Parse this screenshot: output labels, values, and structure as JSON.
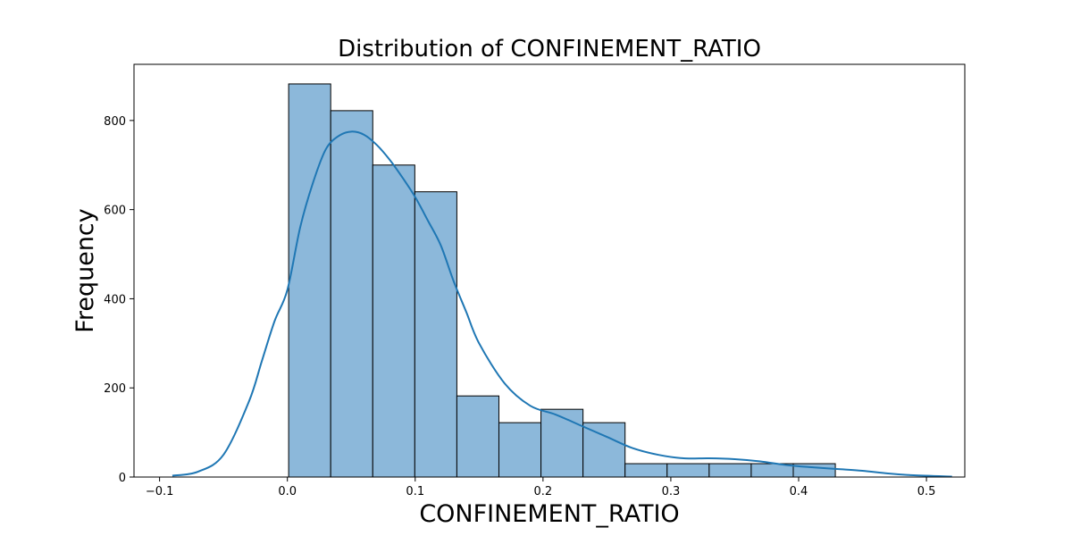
{
  "chart_data": {
    "type": "histogram",
    "title": "Distribution of CONFINEMENT_RATIO",
    "xlabel": "CONFINEMENT_RATIO",
    "ylabel": "Frequency",
    "xlim": [
      -0.12,
      0.53
    ],
    "ylim": [
      0,
      926
    ],
    "xticks": [
      -0.1,
      0.0,
      0.1,
      0.2,
      0.3,
      0.4,
      0.5
    ],
    "xtick_labels": [
      "−0.1",
      "0.0",
      "0.1",
      "0.2",
      "0.3",
      "0.4",
      "0.5"
    ],
    "yticks": [
      0,
      200,
      400,
      600,
      800
    ],
    "ytick_labels": [
      "0",
      "200",
      "400",
      "600",
      "800"
    ],
    "grid": false,
    "bar_color": "#8cb8da",
    "line_color": "#1f77b4",
    "bins": [
      {
        "x0": 0.001,
        "x1": 0.0339,
        "count": 882
      },
      {
        "x0": 0.0339,
        "x1": 0.0668,
        "count": 822
      },
      {
        "x0": 0.0668,
        "x1": 0.0997,
        "count": 700
      },
      {
        "x0": 0.0997,
        "x1": 0.1326,
        "count": 640
      },
      {
        "x0": 0.1326,
        "x1": 0.1655,
        "count": 182
      },
      {
        "x0": 0.1655,
        "x1": 0.1984,
        "count": 122
      },
      {
        "x0": 0.1984,
        "x1": 0.2313,
        "count": 152
      },
      {
        "x0": 0.2313,
        "x1": 0.2642,
        "count": 122
      },
      {
        "x0": 0.2642,
        "x1": 0.2971,
        "count": 30
      },
      {
        "x0": 0.2971,
        "x1": 0.33,
        "count": 30
      },
      {
        "x0": 0.33,
        "x1": 0.3629,
        "count": 30
      },
      {
        "x0": 0.3629,
        "x1": 0.3958,
        "count": 30
      },
      {
        "x0": 0.3958,
        "x1": 0.4287,
        "count": 30
      }
    ],
    "kde": {
      "x": [
        -0.09,
        -0.07,
        -0.05,
        -0.03,
        -0.02,
        -0.01,
        0.0,
        0.01,
        0.02,
        0.03,
        0.04,
        0.05,
        0.06,
        0.07,
        0.08,
        0.09,
        0.1,
        0.11,
        0.12,
        0.13,
        0.14,
        0.15,
        0.17,
        0.19,
        0.21,
        0.23,
        0.25,
        0.27,
        0.29,
        0.31,
        0.33,
        0.35,
        0.37,
        0.39,
        0.41,
        0.43,
        0.45,
        0.47,
        0.49,
        0.52
      ],
      "y": [
        3,
        12,
        50,
        170,
        260,
        350,
        420,
        560,
        660,
        735,
        765,
        775,
        768,
        745,
        712,
        672,
        628,
        575,
        520,
        440,
        370,
        300,
        210,
        160,
        140,
        115,
        90,
        65,
        50,
        42,
        42,
        40,
        35,
        27,
        22,
        18,
        14,
        8,
        4,
        1
      ]
    }
  }
}
